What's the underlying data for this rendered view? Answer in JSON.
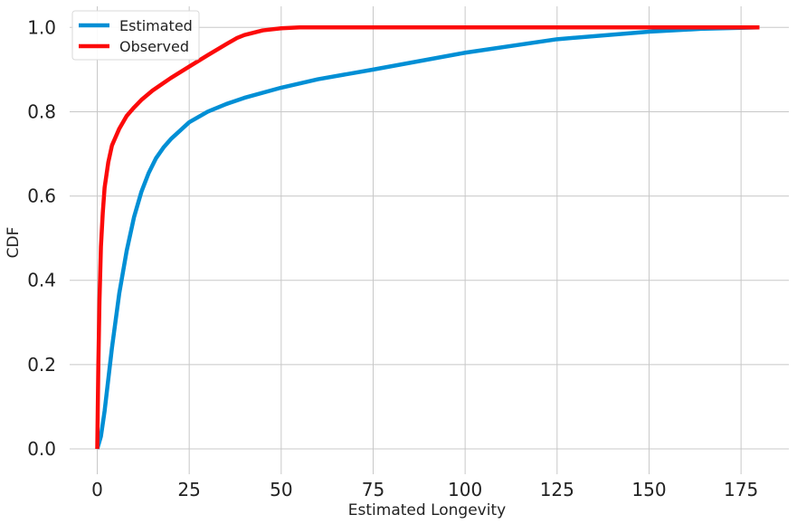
{
  "chart_data": {
    "type": "line",
    "title": "",
    "xlabel": "Estimated Longevity",
    "ylabel": "CDF",
    "xlim": [
      -7.5,
      188
    ],
    "ylim": [
      -0.06,
      1.05
    ],
    "xticks": [
      0,
      25,
      50,
      75,
      100,
      125,
      150,
      175
    ],
    "yticks": [
      0.0,
      0.2,
      0.4,
      0.6,
      0.8,
      1.0
    ],
    "xtick_labels": [
      "0",
      "25",
      "50",
      "75",
      "100",
      "125",
      "150",
      "175"
    ],
    "ytick_labels": [
      "0.0",
      "0.2",
      "0.4",
      "0.6",
      "0.8",
      "1.0"
    ],
    "grid": true,
    "legend_position": "top-left",
    "series": [
      {
        "name": "Estimated",
        "color": "#008fd5",
        "x": [
          0,
          1,
          2,
          4,
          6,
          8,
          10,
          12,
          14,
          16,
          18,
          20,
          25,
          30,
          35,
          40,
          50,
          60,
          75,
          100,
          125,
          150,
          165,
          180
        ],
        "y": [
          0.0,
          0.03,
          0.09,
          0.24,
          0.37,
          0.47,
          0.55,
          0.61,
          0.655,
          0.69,
          0.715,
          0.735,
          0.775,
          0.8,
          0.818,
          0.833,
          0.857,
          0.877,
          0.9,
          0.94,
          0.972,
          0.99,
          0.997,
          1.0
        ]
      },
      {
        "name": "Observed",
        "color": "#fc0a0a",
        "x": [
          0,
          0.3,
          0.6,
          1,
          1.5,
          2,
          3,
          4,
          6,
          8,
          10,
          12,
          15,
          18,
          20,
          25,
          30,
          35,
          38,
          40,
          45,
          50,
          55,
          60,
          100,
          180
        ],
        "y": [
          0.0,
          0.2,
          0.35,
          0.48,
          0.56,
          0.62,
          0.68,
          0.72,
          0.76,
          0.79,
          0.81,
          0.828,
          0.85,
          0.868,
          0.88,
          0.907,
          0.934,
          0.96,
          0.975,
          0.982,
          0.993,
          0.998,
          1.0,
          1.0,
          1.0,
          1.0
        ]
      }
    ]
  }
}
